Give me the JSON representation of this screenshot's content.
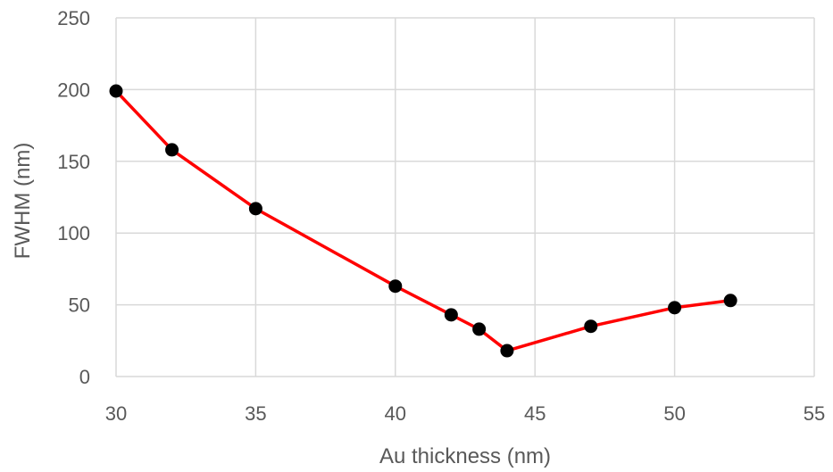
{
  "chart_data": {
    "type": "line",
    "title": "",
    "xlabel": "Au thickness (nm)",
    "ylabel": "FWHM (nm)",
    "xlim": [
      30,
      55
    ],
    "ylim": [
      0,
      250
    ],
    "xticks": [
      30,
      35,
      40,
      45,
      50,
      55
    ],
    "yticks": [
      0,
      50,
      100,
      150,
      200,
      250
    ],
    "grid": true,
    "legend": "none",
    "series": [
      {
        "line_color": "#ff0000",
        "marker_color": "#000000",
        "x": [
          30,
          32,
          35,
          40,
          42,
          43,
          44,
          47,
          50,
          52
        ],
        "y": [
          199,
          158,
          117,
          63,
          43,
          33,
          18,
          35,
          48,
          53
        ]
      }
    ]
  }
}
